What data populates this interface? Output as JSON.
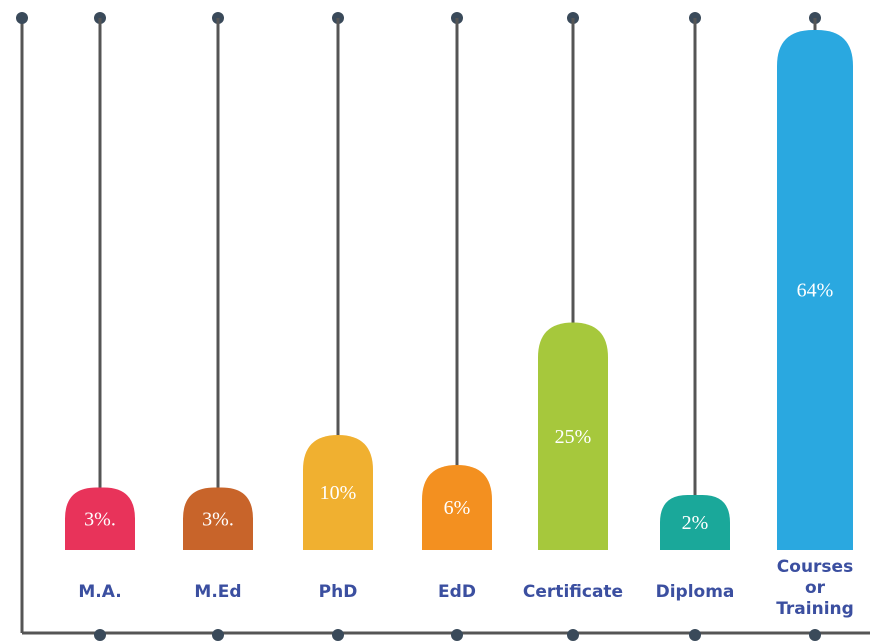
{
  "chart_data": {
    "type": "bar",
    "categories": [
      "M.A.",
      "M.Ed",
      "PhD",
      "EdD",
      "Certificate",
      "Diploma",
      "Courses or Training"
    ],
    "values": [
      3,
      3,
      10,
      6,
      25,
      2,
      64
    ],
    "value_labels": [
      "3%.",
      "3%.",
      "10%",
      "6%",
      "25%",
      "2%",
      "64%"
    ],
    "colors": [
      "#e8335a",
      "#c8642a",
      "#f0b030",
      "#f39020",
      "#a6c83c",
      "#1aa89a",
      "#2aa8e0"
    ]
  }
}
